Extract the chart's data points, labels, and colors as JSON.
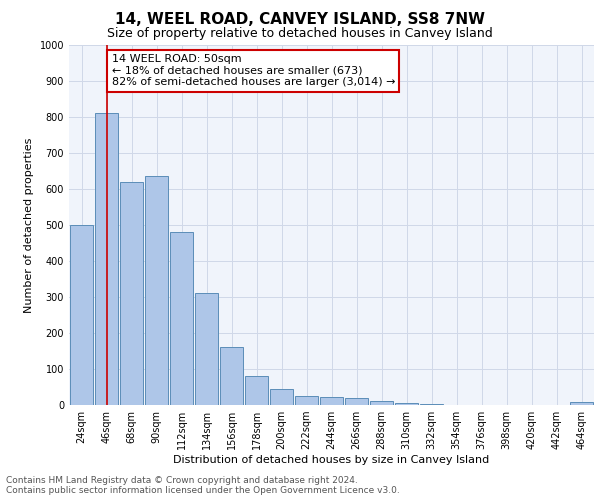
{
  "title": "14, WEEL ROAD, CANVEY ISLAND, SS8 7NW",
  "subtitle": "Size of property relative to detached houses in Canvey Island",
  "xlabel": "Distribution of detached houses by size in Canvey Island",
  "ylabel": "Number of detached properties",
  "categories": [
    "24sqm",
    "46sqm",
    "68sqm",
    "90sqm",
    "112sqm",
    "134sqm",
    "156sqm",
    "178sqm",
    "200sqm",
    "222sqm",
    "244sqm",
    "266sqm",
    "288sqm",
    "310sqm",
    "332sqm",
    "354sqm",
    "376sqm",
    "398sqm",
    "420sqm",
    "442sqm",
    "464sqm"
  ],
  "values": [
    500,
    810,
    620,
    635,
    480,
    310,
    160,
    80,
    45,
    25,
    22,
    20,
    12,
    6,
    2,
    1,
    1,
    0,
    0,
    0,
    7
  ],
  "bar_color": "#aec6e8",
  "bar_edge_color": "#5b8db8",
  "vline_x": 1,
  "vline_color": "#cc0000",
  "annotation_text": "14 WEEL ROAD: 50sqm\n← 18% of detached houses are smaller (673)\n82% of semi-detached houses are larger (3,014) →",
  "annotation_box_color": "#ffffff",
  "annotation_box_edge_color": "#cc0000",
  "ylim": [
    0,
    1000
  ],
  "yticks": [
    0,
    100,
    200,
    300,
    400,
    500,
    600,
    700,
    800,
    900,
    1000
  ],
  "footer_line1": "Contains HM Land Registry data © Crown copyright and database right 2024.",
  "footer_line2": "Contains public sector information licensed under the Open Government Licence v3.0.",
  "grid_color": "#d0d8e8",
  "background_color": "#f0f4fb",
  "title_fontsize": 11,
  "subtitle_fontsize": 9,
  "axis_label_fontsize": 8,
  "tick_fontsize": 7,
  "annotation_fontsize": 8,
  "footer_fontsize": 6.5
}
